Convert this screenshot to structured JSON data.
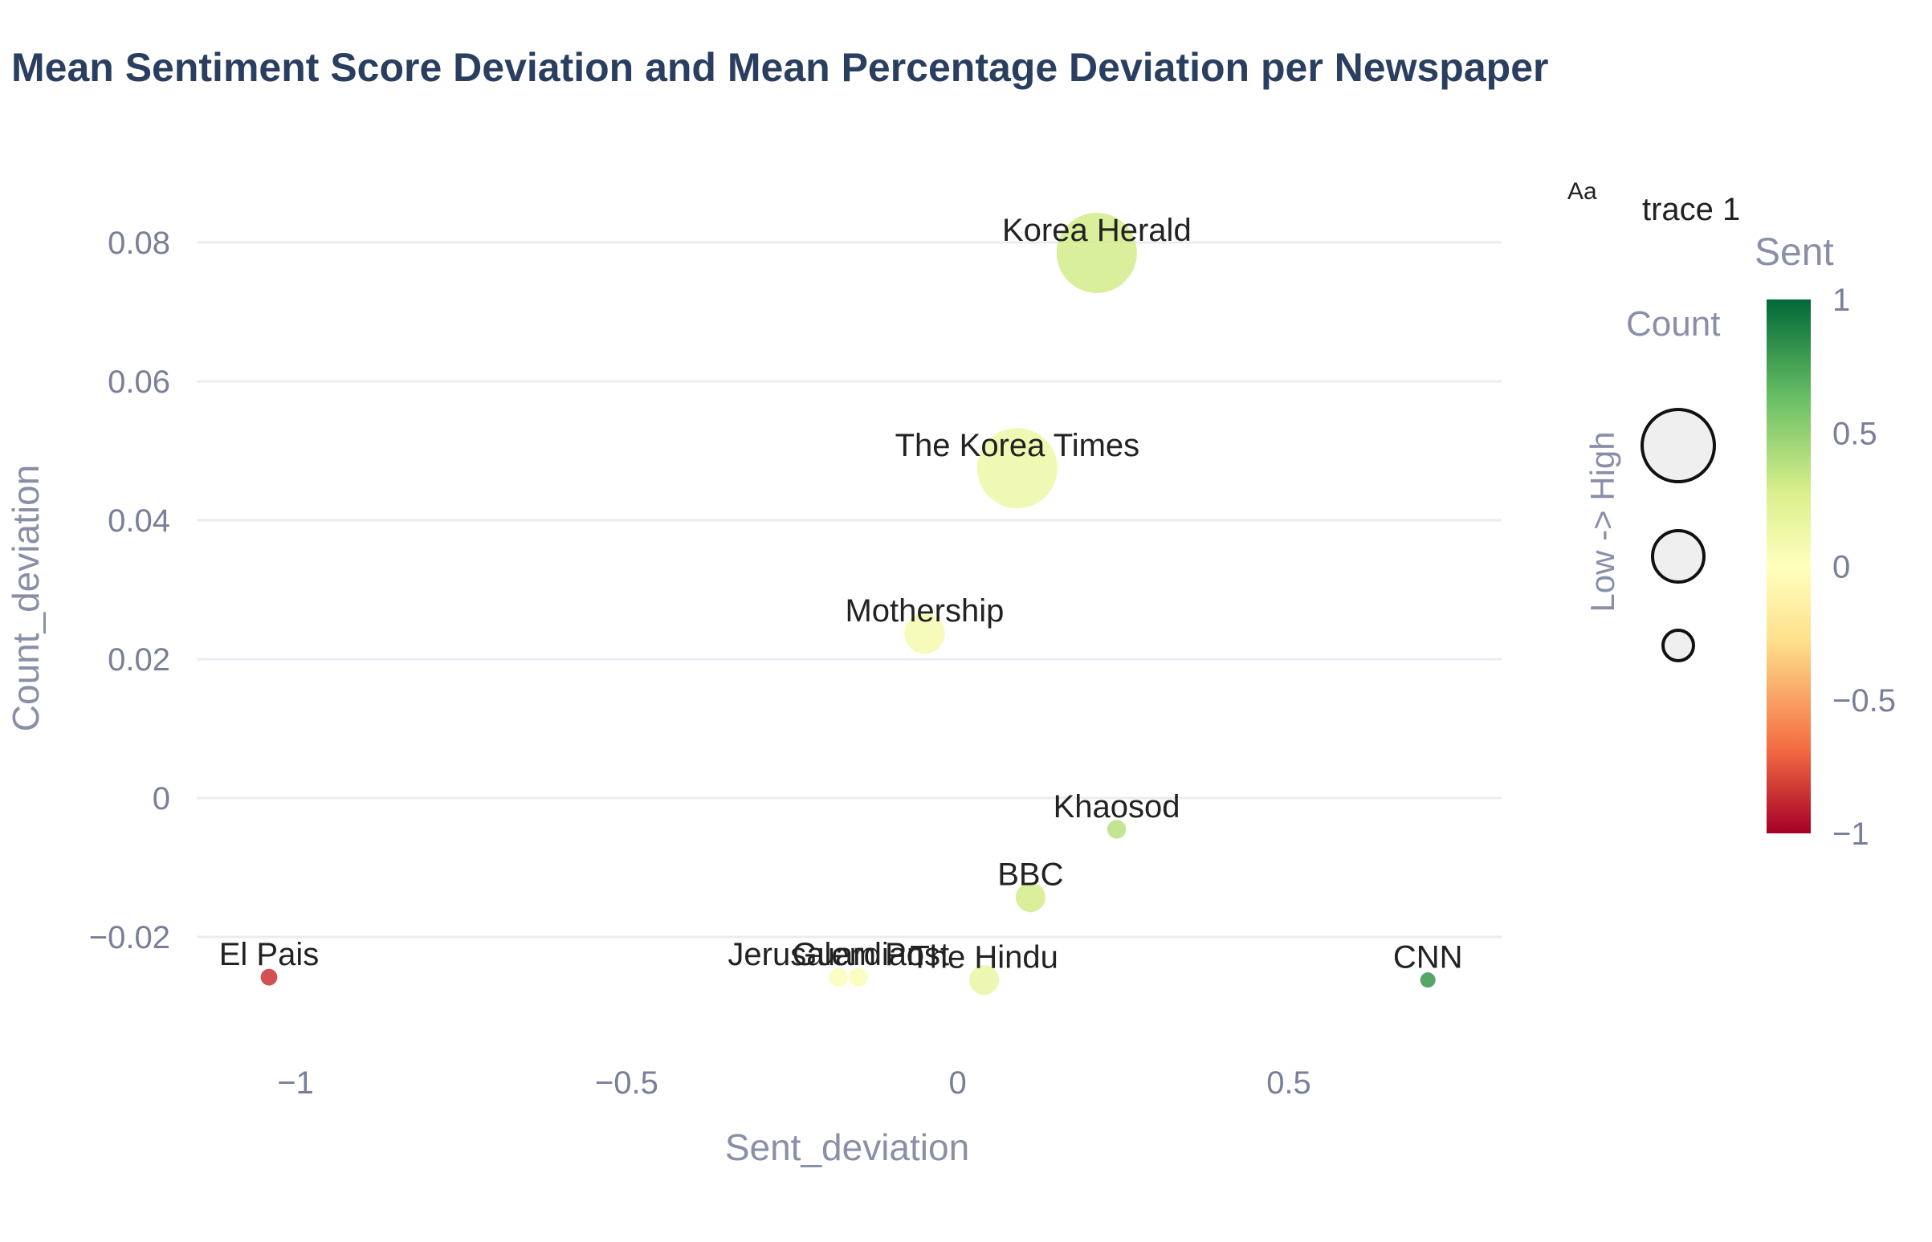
{
  "chart_data": {
    "type": "scatter",
    "title": "Mean Sentiment Score Deviation and Mean Percentage Deviation per Newspaper",
    "xlabel": "Sent_deviation",
    "ylabel": "Count_deviation",
    "xlim": [
      -1.1,
      0.82
    ],
    "ylim": [
      -0.034,
      0.09
    ],
    "x_ticks": [
      {
        "value": -1,
        "label": "−1"
      },
      {
        "value": -0.5,
        "label": "−0.5"
      },
      {
        "value": 0,
        "label": "0"
      },
      {
        "value": 0.5,
        "label": "0.5"
      }
    ],
    "y_ticks": [
      {
        "value": 0.08,
        "label": "0.08"
      },
      {
        "value": 0.06,
        "label": "0.06"
      },
      {
        "value": 0.04,
        "label": "0.04"
      },
      {
        "value": 0.02,
        "label": "0.02"
      },
      {
        "value": 0,
        "label": "0"
      },
      {
        "value": -0.02,
        "label": "−0.02"
      }
    ],
    "grid": true,
    "points": [
      {
        "label": "Korea Herald",
        "x": 0.21,
        "y": 0.0785,
        "sent": 0.3,
        "size": 1.0
      },
      {
        "label": "The Korea Times",
        "x": 0.09,
        "y": 0.0475,
        "sent": 0.13,
        "size": 1.0
      },
      {
        "label": "Mothership",
        "x": -0.05,
        "y": 0.0237,
        "sent": 0.08,
        "size": 0.45
      },
      {
        "label": "Khaosod",
        "x": 0.24,
        "y": -0.0045,
        "sent": 0.38,
        "size": 0.15
      },
      {
        "label": "BBC",
        "x": 0.11,
        "y": -0.0143,
        "sent": 0.3,
        "size": 0.3
      },
      {
        "label": "El Pais",
        "x": -1.04,
        "y": -0.0258,
        "sent": -0.85,
        "size": 0.12
      },
      {
        "label": "Guardian",
        "x": -0.15,
        "y": -0.0258,
        "sent": 0.03,
        "size": 0.15
      },
      {
        "label": "Jerusalem Post",
        "x": -0.18,
        "y": -0.0258,
        "sent": 0.03,
        "size": 0.15
      },
      {
        "label": "The Hindu",
        "x": 0.04,
        "y": -0.0262,
        "sent": 0.15,
        "size": 0.3
      },
      {
        "label": "CNN",
        "x": 0.71,
        "y": -0.0262,
        "sent": 0.8,
        "size": 0.1
      }
    ],
    "legend": {
      "trace_name": "trace 1",
      "size_title": "Count",
      "size_scale_label": "Low -> High",
      "colorbar_title": "Sent",
      "colorbar_ticks": [
        {
          "value": 1,
          "label": "1"
        },
        {
          "value": 0.5,
          "label": "0.5"
        },
        {
          "value": 0,
          "label": "0"
        },
        {
          "value": -0.5,
          "label": "−0.5"
        },
        {
          "value": -1,
          "label": "−1"
        }
      ],
      "colorscale": [
        "#a50026",
        "#f46d43",
        "#fee08b",
        "#ffffbf",
        "#d9ef8b",
        "#66bd63",
        "#006837"
      ],
      "glyph": "Aa"
    }
  }
}
